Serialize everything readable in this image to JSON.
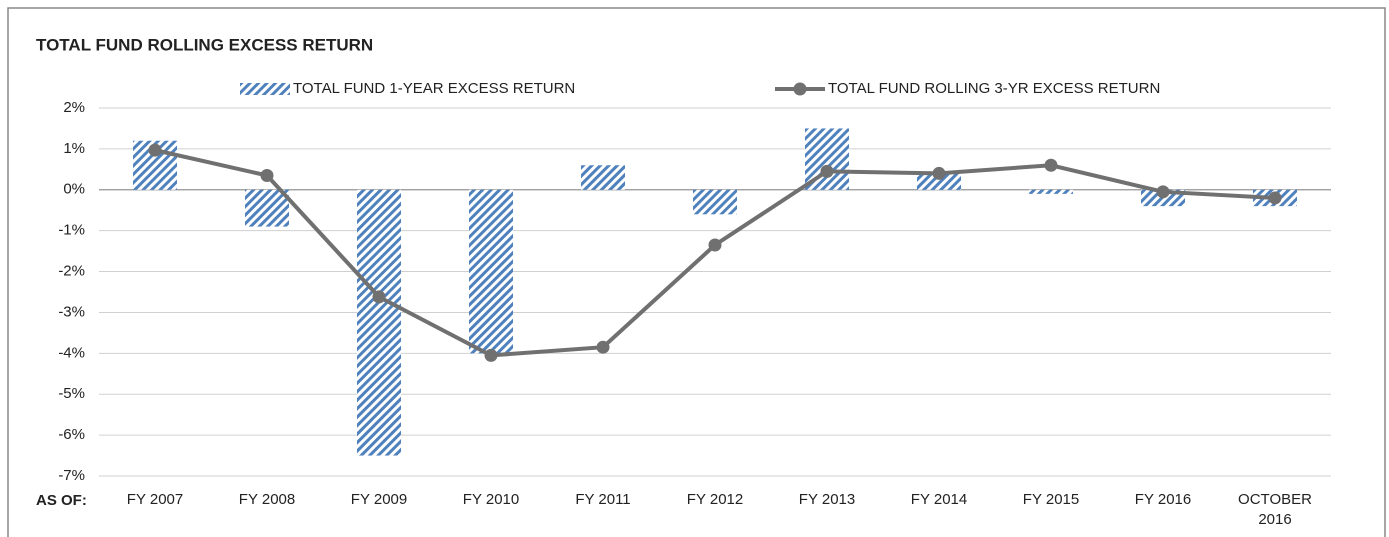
{
  "chart_data": {
    "type": "bar",
    "title": "TOTAL FUND ROLLING EXCESS RETURN",
    "x_label": "AS OF:",
    "categories": [
      "FY 2007",
      "FY 2008",
      "FY 2009",
      "FY 2010",
      "FY 2011",
      "FY 2012",
      "FY 2013",
      "FY 2014",
      "FY 2015",
      "FY 2016",
      "OCTOBER 2016"
    ],
    "series": [
      {
        "name": "TOTAL FUND 1-YEAR EXCESS RETURN",
        "type": "bar",
        "color": "#4f81bd",
        "values": [
          1.2,
          -0.9,
          -6.5,
          -4.0,
          0.6,
          -0.6,
          1.5,
          0.4,
          -0.1,
          -0.4,
          -0.4
        ]
      },
      {
        "name": "TOTAL FUND ROLLING 3-YR EXCESS RETURN",
        "type": "line",
        "color": "#707070",
        "values": [
          0.97,
          0.35,
          -2.62,
          -4.05,
          -3.85,
          -1.35,
          0.45,
          0.4,
          0.6,
          -0.05,
          -0.2
        ]
      }
    ],
    "ylim": [
      -7,
      2
    ],
    "yticks": [
      {
        "value": -7,
        "label": "-7%"
      },
      {
        "value": -6,
        "label": "-6%"
      },
      {
        "value": -5,
        "label": "-5%"
      },
      {
        "value": -4,
        "label": "-4%"
      },
      {
        "value": -3,
        "label": "-3%"
      },
      {
        "value": -2,
        "label": "-2%"
      },
      {
        "value": -1,
        "label": "-1%"
      },
      {
        "value": 0,
        "label": "0%"
      },
      {
        "value": 1,
        "label": "1%"
      },
      {
        "value": 2,
        "label": "2%"
      }
    ],
    "grid": true
  }
}
